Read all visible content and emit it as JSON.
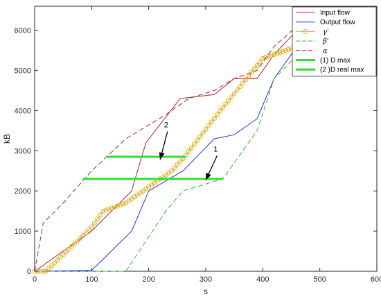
{
  "chart_data": {
    "type": "line",
    "title": "",
    "xlabel": "s",
    "ylabel": "kB",
    "xlim": [
      0,
      600
    ],
    "ylim": [
      0,
      6600
    ],
    "xticks": [
      0,
      100,
      200,
      300,
      400,
      500,
      600
    ],
    "yticks": [
      0,
      1000,
      2000,
      3000,
      4000,
      5000,
      6000
    ],
    "grid": false,
    "legend_position": "top-right",
    "series": [
      {
        "name": "Input flow",
        "color": "#a0292a",
        "style": "solid",
        "x": [
          0,
          100,
          170,
          195,
          255,
          315,
          350,
          390,
          420,
          460,
          580
        ],
        "y": [
          0,
          1000,
          2000,
          3200,
          4300,
          4400,
          4800,
          4800,
          5400,
          6000,
          6450
        ]
      },
      {
        "name": "Output flow",
        "color": "#2233cc",
        "style": "solid",
        "x": [
          0,
          100,
          170,
          200,
          260,
          315,
          350,
          390,
          420,
          455,
          580
        ],
        "y": [
          0,
          20,
          1000,
          2000,
          2500,
          3300,
          3400,
          3800,
          4800,
          5500,
          6450
        ]
      },
      {
        "name": "γ'",
        "color": "#d9b02a",
        "style": "markers",
        "x": [
          0,
          20,
          100,
          120,
          160,
          200,
          240,
          260,
          320,
          400,
          460,
          500,
          560
        ],
        "y": [
          0,
          0,
          1100,
          1500,
          1700,
          2100,
          2500,
          2800,
          3900,
          5300,
          5600,
          5800,
          6300
        ]
      },
      {
        "name": "β'",
        "color": "#33b533",
        "style": "dashed",
        "x": [
          0,
          160,
          230,
          260,
          330,
          390,
          420,
          455,
          580
        ],
        "y": [
          0,
          0,
          1500,
          2000,
          2300,
          3500,
          4800,
          5300,
          6450
        ]
      },
      {
        "name": "α",
        "color": "#a0292a",
        "style": "dashed",
        "x": [
          0,
          15,
          50,
          100,
          160,
          230,
          270,
          315,
          350,
          390,
          420,
          460,
          580
        ],
        "y": [
          0,
          1200,
          1700,
          2500,
          3300,
          3900,
          4300,
          4500,
          4800,
          5000,
          5600,
          6100,
          6550
        ]
      },
      {
        "name": "(1) D max",
        "color": "#33dd33",
        "style": "thick",
        "x": [
          85,
          330
        ],
        "y": [
          2300,
          2300
        ]
      },
      {
        "name": "(2 )D real max",
        "color": "#33dd33",
        "style": "thick",
        "x": [
          125,
          265
        ],
        "y": [
          2850,
          2850
        ]
      }
    ],
    "annotations": [
      {
        "text": "1",
        "x": 320,
        "y": 2950,
        "arrow_to": [
          300,
          2270
        ]
      },
      {
        "text": "2",
        "x": 233,
        "y": 3550,
        "arrow_to": [
          220,
          2780
        ]
      }
    ]
  }
}
